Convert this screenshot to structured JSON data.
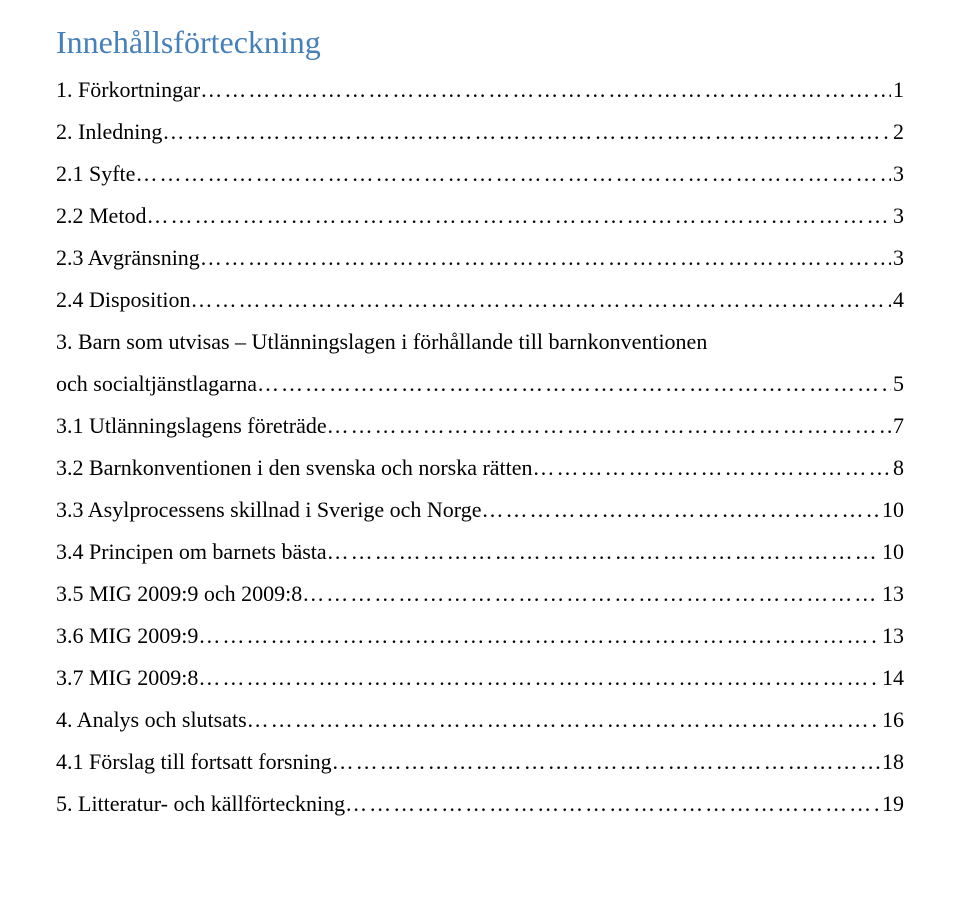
{
  "title": "Innehållsförteckning",
  "title_color": "#4680b9",
  "text_color": "#000000",
  "entries": [
    {
      "label": "1. Förkortningar",
      "page": "1"
    },
    {
      "label": "2. Inledning",
      "page": "2"
    },
    {
      "label": "2.1 Syfte",
      "page": "3"
    },
    {
      "label": "2.2 Metod",
      "page": "3"
    },
    {
      "label": "2.3 Avgränsning",
      "page": "3"
    },
    {
      "label": "2.4 Disposition",
      "page": "4"
    },
    {
      "label": "3. Barn som utvisas – Utlänningslagen i förhållande till barnkonventionen",
      "page": ""
    },
    {
      "label": "och socialtjänstlagarna",
      "page": "5"
    },
    {
      "label": "3.1 Utlänningslagens företräde",
      "page": "7"
    },
    {
      "label": "3.2 Barnkonventionen i den svenska och norska rätten",
      "page": "8"
    },
    {
      "label": "3.3 Asylprocessens skillnad i Sverige och Norge",
      "page": "10"
    },
    {
      "label": "3.4 Principen om barnets bästa",
      "page": "10"
    },
    {
      "label": "3.5 MIG 2009:9 och 2009:8",
      "page": "13"
    },
    {
      "label": "3.6 MIG 2009:9",
      "page": "13"
    },
    {
      "label": "3.7 MIG 2009:8",
      "page": "14"
    },
    {
      "label": "4. Analys och slutsats",
      "page": "16"
    },
    {
      "label": "4.1 Förslag till fortsatt forsning",
      "page": "18"
    },
    {
      "label": "5. Litteratur- och källförteckning",
      "page": "19"
    }
  ]
}
